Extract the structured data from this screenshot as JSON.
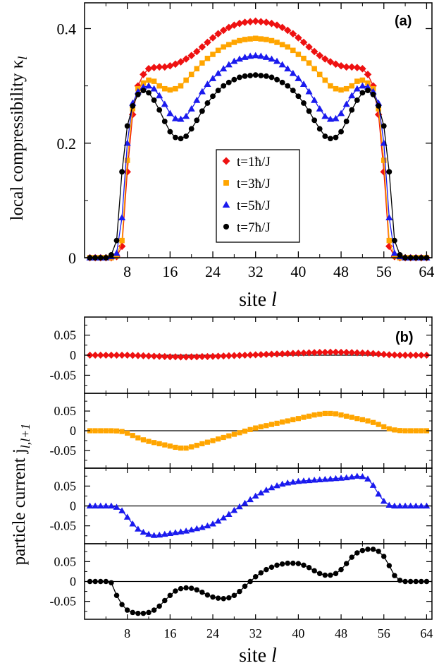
{
  "chart_data": [
    {
      "type": "line",
      "panel_label": "(a)",
      "xlabel": "site l",
      "ylabel": "local compressibility κ_l",
      "xlim": [
        0,
        65
      ],
      "ylim": [
        0,
        0.445
      ],
      "xticks": [
        8,
        16,
        24,
        32,
        40,
        48,
        56,
        64
      ],
      "yticks": [
        {
          "value": 0,
          "label": "0"
        },
        {
          "value": 0.2,
          "label": "0.2"
        },
        {
          "value": 0.4,
          "label": "0.4"
        }
      ],
      "legend_position": "center",
      "x": [
        1,
        2,
        3,
        4,
        5,
        6,
        7,
        8,
        9,
        10,
        11,
        12,
        13,
        14,
        15,
        16,
        17,
        18,
        19,
        20,
        21,
        22,
        23,
        24,
        25,
        26,
        27,
        28,
        29,
        30,
        31,
        32,
        33,
        34,
        35,
        36,
        37,
        38,
        39,
        40,
        41,
        42,
        43,
        44,
        45,
        46,
        47,
        48,
        49,
        50,
        51,
        52,
        53,
        54,
        55,
        56,
        57,
        58,
        59,
        60,
        61,
        62,
        63,
        64
      ],
      "series": [
        {
          "name": "t=1ħ/J",
          "color": "#ee1111",
          "marker": "diamond",
          "values": [
            0,
            0,
            0,
            0,
            0,
            0.002,
            0.02,
            0.15,
            0.25,
            0.3,
            0.32,
            0.33,
            0.332,
            0.333,
            0.333,
            0.335,
            0.338,
            0.342,
            0.347,
            0.353,
            0.36,
            0.368,
            0.376,
            0.384,
            0.391,
            0.397,
            0.402,
            0.406,
            0.409,
            0.411,
            0.412,
            0.413,
            0.412,
            0.411,
            0.409,
            0.406,
            0.402,
            0.397,
            0.391,
            0.384,
            0.376,
            0.368,
            0.36,
            0.353,
            0.347,
            0.342,
            0.338,
            0.335,
            0.333,
            0.333,
            0.332,
            0.33,
            0.32,
            0.3,
            0.25,
            0.15,
            0.02,
            0.002,
            0,
            0,
            0,
            0,
            0,
            0
          ]
        },
        {
          "name": "t=3ħ/J",
          "color": "#ffa500",
          "marker": "square",
          "values": [
            0,
            0,
            0,
            0,
            0,
            0.003,
            0.03,
            0.17,
            0.26,
            0.295,
            0.305,
            0.31,
            0.308,
            0.3,
            0.295,
            0.293,
            0.295,
            0.3,
            0.31,
            0.32,
            0.33,
            0.34,
            0.348,
            0.355,
            0.362,
            0.368,
            0.372,
            0.376,
            0.379,
            0.381,
            0.382,
            0.383,
            0.382,
            0.381,
            0.379,
            0.376,
            0.372,
            0.368,
            0.362,
            0.355,
            0.348,
            0.34,
            0.33,
            0.32,
            0.31,
            0.3,
            0.295,
            0.293,
            0.295,
            0.3,
            0.308,
            0.31,
            0.305,
            0.295,
            0.26,
            0.17,
            0.03,
            0.003,
            0,
            0,
            0,
            0,
            0,
            0
          ]
        },
        {
          "name": "t=5ħ/J",
          "color": "#1a1aee",
          "marker": "triangle",
          "values": [
            0,
            0,
            0,
            0,
            0.002,
            0.008,
            0.07,
            0.2,
            0.27,
            0.29,
            0.298,
            0.3,
            0.295,
            0.283,
            0.268,
            0.252,
            0.243,
            0.242,
            0.247,
            0.26,
            0.275,
            0.29,
            0.303,
            0.313,
            0.322,
            0.33,
            0.337,
            0.343,
            0.347,
            0.35,
            0.352,
            0.353,
            0.352,
            0.35,
            0.347,
            0.343,
            0.337,
            0.33,
            0.322,
            0.313,
            0.303,
            0.29,
            0.275,
            0.26,
            0.247,
            0.242,
            0.243,
            0.252,
            0.268,
            0.283,
            0.295,
            0.3,
            0.298,
            0.29,
            0.27,
            0.2,
            0.07,
            0.008,
            0.002,
            0,
            0,
            0,
            0,
            0
          ]
        },
        {
          "name": "t=7ħ/J",
          "color": "#000000",
          "marker": "circle",
          "values": [
            0,
            0,
            0,
            0,
            0.005,
            0.03,
            0.15,
            0.23,
            0.265,
            0.285,
            0.292,
            0.288,
            0.275,
            0.258,
            0.238,
            0.22,
            0.21,
            0.208,
            0.212,
            0.225,
            0.24,
            0.256,
            0.27,
            0.282,
            0.292,
            0.3,
            0.306,
            0.311,
            0.315,
            0.317,
            0.318,
            0.319,
            0.318,
            0.317,
            0.315,
            0.311,
            0.306,
            0.3,
            0.292,
            0.282,
            0.27,
            0.256,
            0.24,
            0.225,
            0.212,
            0.208,
            0.21,
            0.22,
            0.238,
            0.258,
            0.275,
            0.288,
            0.292,
            0.285,
            0.265,
            0.23,
            0.15,
            0.03,
            0.005,
            0,
            0,
            0,
            0,
            0
          ]
        }
      ]
    },
    {
      "type": "line",
      "panel_label": "(b)",
      "xlabel": "site l",
      "ylabel": "particle current j_{l,l+1}",
      "xlim": [
        0,
        65
      ],
      "ylim": [
        -0.095,
        0.095
      ],
      "xticks": [
        8,
        16,
        24,
        32,
        40,
        48,
        56,
        64
      ],
      "yticks": [
        {
          "value": 0.05,
          "label": "0.05"
        },
        {
          "value": 0,
          "label": "0"
        },
        {
          "value": -0.05,
          "label": "-0.05"
        }
      ],
      "x": [
        1,
        2,
        3,
        4,
        5,
        6,
        7,
        8,
        9,
        10,
        11,
        12,
        13,
        14,
        15,
        16,
        17,
        18,
        19,
        20,
        21,
        22,
        23,
        24,
        25,
        26,
        27,
        28,
        29,
        30,
        31,
        32,
        33,
        34,
        35,
        36,
        37,
        38,
        39,
        40,
        41,
        42,
        43,
        44,
        45,
        46,
        47,
        48,
        49,
        50,
        51,
        52,
        53,
        54,
        55,
        56,
        57,
        58,
        59,
        60,
        61,
        62,
        63,
        64
      ],
      "subplots": [
        {
          "series_index": 0,
          "color": "#ee1111",
          "marker": "diamond",
          "values": [
            0,
            0,
            0,
            0,
            0,
            0,
            0,
            0,
            -0.0005,
            -0.001,
            -0.0015,
            -0.002,
            -0.0025,
            -0.003,
            -0.0035,
            -0.004,
            -0.004,
            -0.0045,
            -0.0045,
            -0.004,
            -0.004,
            -0.0035,
            -0.0035,
            -0.003,
            -0.0025,
            -0.002,
            -0.0015,
            -0.001,
            -0.0005,
            0,
            0.0005,
            0.001,
            0.0015,
            0.002,
            0.0025,
            0.003,
            0.0035,
            0.004,
            0.0045,
            0.005,
            0.0055,
            0.006,
            0.0065,
            0.007,
            0.0072,
            0.0075,
            0.0075,
            0.0072,
            0.007,
            0.0065,
            0.006,
            0.0055,
            0.005,
            0.004,
            0.003,
            0.002,
            0.001,
            0.0005,
            0,
            0,
            0,
            0,
            0,
            0
          ]
        },
        {
          "series_index": 1,
          "color": "#ffa500",
          "marker": "square",
          "values": [
            0,
            0,
            0,
            0,
            0,
            -0.0005,
            -0.002,
            -0.006,
            -0.012,
            -0.018,
            -0.023,
            -0.027,
            -0.03,
            -0.033,
            -0.036,
            -0.039,
            -0.042,
            -0.044,
            -0.044,
            -0.041,
            -0.037,
            -0.033,
            -0.029,
            -0.025,
            -0.021,
            -0.017,
            -0.013,
            -0.009,
            -0.005,
            -0.001,
            0.003,
            0.007,
            0.01,
            0.013,
            0.016,
            0.019,
            0.022,
            0.025,
            0.028,
            0.031,
            0.034,
            0.037,
            0.04,
            0.042,
            0.044,
            0.044,
            0.043,
            0.04,
            0.037,
            0.034,
            0.031,
            0.028,
            0.025,
            0.021,
            0.016,
            0.01,
            0.005,
            0.002,
            0.0005,
            0,
            0,
            0,
            0,
            0
          ]
        },
        {
          "series_index": 2,
          "color": "#1a1aee",
          "marker": "triangle",
          "values": [
            0,
            0,
            0,
            0,
            0,
            -0.003,
            -0.012,
            -0.028,
            -0.045,
            -0.058,
            -0.066,
            -0.071,
            -0.074,
            -0.073,
            -0.071,
            -0.069,
            -0.067,
            -0.065,
            -0.063,
            -0.06,
            -0.057,
            -0.054,
            -0.05,
            -0.045,
            -0.038,
            -0.03,
            -0.021,
            -0.011,
            -0.002,
            0.007,
            0.016,
            0.025,
            0.033,
            0.04,
            0.046,
            0.051,
            0.055,
            0.058,
            0.06,
            0.062,
            0.063,
            0.064,
            0.065,
            0.066,
            0.067,
            0.068,
            0.069,
            0.07,
            0.071,
            0.073,
            0.075,
            0.074,
            0.068,
            0.052,
            0.03,
            0.012,
            0.002,
            0,
            0,
            0,
            0,
            0,
            0,
            0
          ]
        },
        {
          "series_index": 3,
          "color": "#000000",
          "marker": "circle",
          "values": [
            0,
            0,
            0,
            0,
            -0.003,
            -0.035,
            -0.058,
            -0.072,
            -0.078,
            -0.08,
            -0.08,
            -0.078,
            -0.072,
            -0.062,
            -0.048,
            -0.035,
            -0.024,
            -0.018,
            -0.016,
            -0.017,
            -0.021,
            -0.027,
            -0.034,
            -0.039,
            -0.042,
            -0.043,
            -0.041,
            -0.035,
            -0.025,
            -0.012,
            0,
            0.012,
            0.022,
            0.03,
            0.036,
            0.041,
            0.044,
            0.046,
            0.046,
            0.045,
            0.041,
            0.035,
            0.027,
            0.02,
            0.016,
            0.016,
            0.02,
            0.03,
            0.045,
            0.061,
            0.072,
            0.078,
            0.081,
            0.081,
            0.076,
            0.063,
            0.04,
            0.015,
            0.003,
            0,
            0,
            0,
            0,
            0
          ]
        }
      ]
    }
  ]
}
